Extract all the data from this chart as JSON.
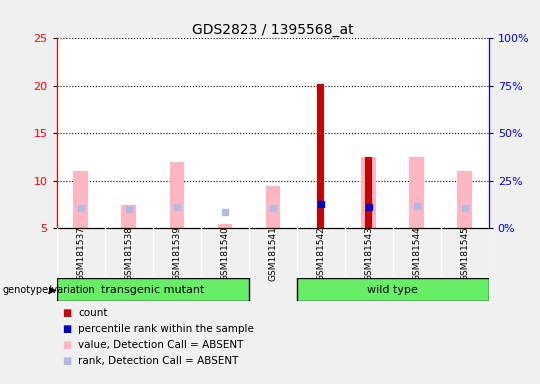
{
  "title": "GDS2823 / 1395568_at",
  "samples": [
    "GSM181537",
    "GSM181538",
    "GSM181539",
    "GSM181540",
    "GSM181541",
    "GSM181542",
    "GSM181543",
    "GSM181544",
    "GSM181545"
  ],
  "value_absent": [
    11.0,
    7.5,
    12.0,
    5.5,
    9.5,
    null,
    12.5,
    12.5,
    11.0
  ],
  "rank_absent": [
    11.0,
    10.0,
    11.5,
    8.7,
    10.9,
    null,
    null,
    11.8,
    11.0
  ],
  "count_present": [
    null,
    null,
    null,
    null,
    null,
    20.2,
    12.5,
    null,
    null
  ],
  "rank_present": [
    null,
    null,
    null,
    null,
    null,
    13.0,
    11.5,
    null,
    null
  ],
  "ylim_left": [
    5,
    25
  ],
  "ylim_right": [
    0,
    100
  ],
  "yticks_left": [
    5,
    10,
    15,
    20,
    25
  ],
  "yticks_right": [
    0,
    25,
    50,
    75,
    100
  ],
  "background_color": "#f0f0f0",
  "plot_bg": "#ffffff",
  "bar_width": 0.3,
  "color_value_absent": "#ffb6c1",
  "color_rank_absent": "#b0b8e8",
  "color_count_present": "#cc0000",
  "color_rank_present": "#0000cc",
  "tm_samples": [
    0,
    1,
    2,
    3
  ],
  "wt_samples": [
    4,
    5,
    6,
    7,
    8
  ],
  "legend_items": [
    {
      "color": "#cc0000",
      "label": "count"
    },
    {
      "color": "#0000cc",
      "label": "percentile rank within the sample"
    },
    {
      "color": "#ffb6c1",
      "label": "value, Detection Call = ABSENT"
    },
    {
      "color": "#b0b8e8",
      "label": "rank, Detection Call = ABSENT"
    }
  ]
}
